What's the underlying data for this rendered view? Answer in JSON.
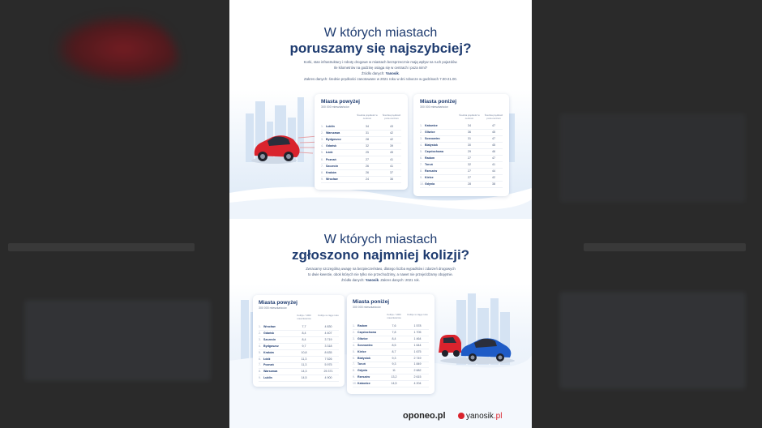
{
  "section1": {
    "title_line1": "W których miastach",
    "title_line2": "poruszamy się najszybciej?",
    "intro_line1": "Korki, stan infrastruktury i roboty drogowe w miastach bezsprzecznie mają wpływ na ruch pojazdów.",
    "intro_line2": "Ile kilometrów na godzinę osiąga się w centrach i poza nimi?",
    "intro_source_prefix": "Źródło danych: ",
    "intro_source": "Yanosik",
    "intro_line4": "Zakres danych: średnie prędkości zanotowane w 2021 roku w dni robocze w godzinach 7.00-21.00.",
    "left": {
      "title": "Miasta powyżej",
      "subtitle": "300 000 mieszkańców",
      "col1": "Średnia prędkość w centrum",
      "col2": "Średnia prędkość poza centrum",
      "rows": [
        {
          "n": "1.",
          "city": "Lublin",
          "a": "34",
          "b": "43"
        },
        {
          "n": "2.",
          "city": "Warszawa",
          "a": "31",
          "b": "42"
        },
        {
          "n": "3.",
          "city": "Bydgoszcz",
          "a": "28",
          "b": "42"
        },
        {
          "n": "4.",
          "city": "Gdańsk",
          "a": "32",
          "b": "39"
        },
        {
          "n": "5.",
          "city": "Łódź",
          "a": "25",
          "b": "45"
        },
        {
          "n": "6.",
          "city": "Poznań",
          "a": "27",
          "b": "41"
        },
        {
          "n": "7.",
          "city": "Szczecin",
          "a": "26",
          "b": "41"
        },
        {
          "n": "8.",
          "city": "Kraków",
          "a": "26",
          "b": "37"
        },
        {
          "n": "9.",
          "city": "Wrocław",
          "a": "24",
          "b": "36"
        }
      ]
    },
    "right": {
      "title": "Miasta poniżej",
      "subtitle": "300 000 mieszkańców",
      "col1": "Średnia prędkość w centrum",
      "col2": "Średnia prędkość poza centrum",
      "rows": [
        {
          "n": "1.",
          "city": "Katowice",
          "a": "34",
          "b": "47"
        },
        {
          "n": "2.",
          "city": "Gliwice",
          "a": "36",
          "b": "45"
        },
        {
          "n": "3.",
          "city": "Sosnowiec",
          "a": "31",
          "b": "47"
        },
        {
          "n": "4.",
          "city": "Białystok",
          "a": "30",
          "b": "45"
        },
        {
          "n": "5.",
          "city": "Częstochowa",
          "a": "29",
          "b": "46"
        },
        {
          "n": "6.",
          "city": "Radom",
          "a": "27",
          "b": "47"
        },
        {
          "n": "7.",
          "city": "Toruń",
          "a": "32",
          "b": "41"
        },
        {
          "n": "8.",
          "city": "Rzeszów",
          "a": "27",
          "b": "44"
        },
        {
          "n": "9.",
          "city": "Kielce",
          "a": "27",
          "b": "42"
        },
        {
          "n": "10.",
          "city": "Gdynia",
          "a": "28",
          "b": "38"
        }
      ]
    }
  },
  "section2": {
    "title_line1": "W których miastach",
    "title_line2": "zgłoszono najmniej kolizji?",
    "intro_line1": "Zwracamy szczególną uwagę na bezpieczeństwo, dlatego liczba wypadków i zdarzeń drogowych",
    "intro_line2": "to dwie kwestie, obok których nie tylko nie przechodzimy, a nawet nie przejeżdżamy obojętnie.",
    "intro_source_prefix": "Źródło danych: ",
    "intro_source": "Yanosik",
    "intro_source_suffix": ". Zakres danych: 2021 rok.",
    "left": {
      "title": "Miasta powyżej",
      "subtitle": "300 000 mieszkańców",
      "col1": "Kolizje / 1000 mieszkańców",
      "col2": "Kolizje w ciągu roku",
      "rows": [
        {
          "n": "1.",
          "city": "Wrocław",
          "a": "7,7",
          "b": "4 830"
        },
        {
          "n": "2.",
          "city": "Gdańsk",
          "a": "8,4",
          "b": "4 407"
        },
        {
          "n": "3.",
          "city": "Szczecin",
          "a": "8,4",
          "b": "3 719"
        },
        {
          "n": "4.",
          "city": "Bydgoszcz",
          "a": "9,7",
          "b": "3 318"
        },
        {
          "n": "5.",
          "city": "Kraków",
          "a": "10,8",
          "b": "8 635"
        },
        {
          "n": "6.",
          "city": "Łódź",
          "a": "11,3",
          "b": "7 526"
        },
        {
          "n": "7.",
          "city": "Poznań",
          "a": "11,3",
          "b": "5 975"
        },
        {
          "n": "8.",
          "city": "Warszawa",
          "a": "14,3",
          "b": "25 371"
        },
        {
          "n": "9.",
          "city": "Lublin",
          "a": "14,5",
          "b": "4 900"
        }
      ]
    },
    "right": {
      "title": "Miasta poniżej",
      "subtitle": "300 000 mieszkańców",
      "col1": "Kolizje / 1000 mieszkańców",
      "col2": "Kolizje w ciągu roku",
      "rows": [
        {
          "n": "1.",
          "city": "Radom",
          "a": "7,6",
          "b": "1 578"
        },
        {
          "n": "2.",
          "city": "Częstochowa",
          "a": "7,8",
          "b": "1 705"
        },
        {
          "n": "3.",
          "city": "Gliwice",
          "a": "8,4",
          "b": "1 464"
        },
        {
          "n": "4.",
          "city": "Sosnowiec",
          "a": "8,5",
          "b": "1 644"
        },
        {
          "n": "5.",
          "city": "Kielce",
          "a": "8,7",
          "b": "1 675"
        },
        {
          "n": "6.",
          "city": "Białystok",
          "a": "9,3",
          "b": "2 749"
        },
        {
          "n": "7.",
          "city": "Toruń",
          "a": "9,3",
          "b": "1 849"
        },
        {
          "n": "8.",
          "city": "Gdynia",
          "a": "11",
          "b": "2 682"
        },
        {
          "n": "9.",
          "city": "Rzeszów",
          "a": "13,2",
          "b": "2 615"
        },
        {
          "n": "10.",
          "city": "Katowice",
          "a": "14,5",
          "b": "4 204"
        }
      ]
    }
  },
  "footer": {
    "oponeo": "oponeo.pl",
    "yanosik_name": "yanosik",
    "yanosik_tld": ".pl"
  },
  "colors": {
    "navy": "#1f3c70",
    "accent_red": "#d9232d",
    "sky": "#e6f0fa"
  }
}
